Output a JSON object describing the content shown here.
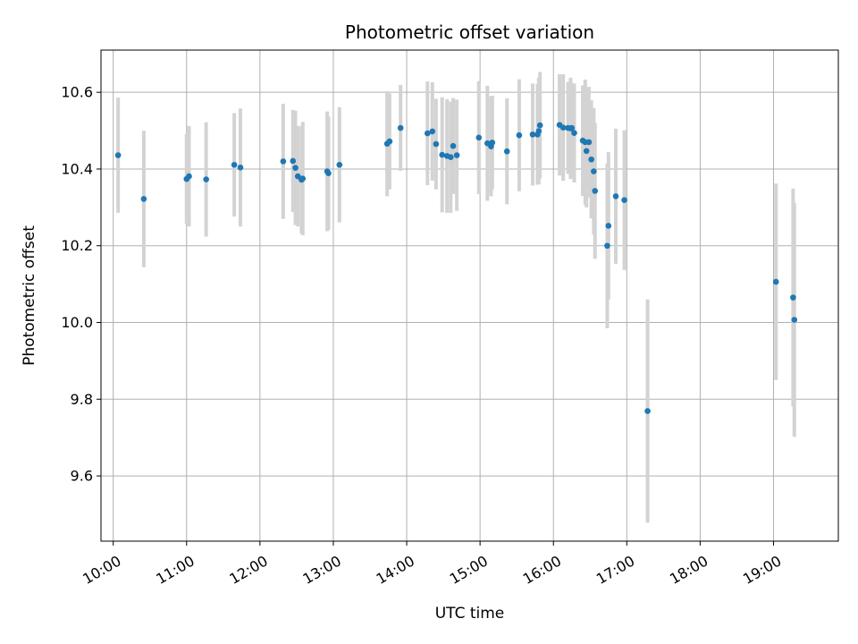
{
  "chart_data": {
    "type": "scatter",
    "title": "Photometric offset variation",
    "xlabel": "UTC time",
    "ylabel": "Photometric offset",
    "grid": true,
    "xlim": [
      "09:50",
      "19:53"
    ],
    "ylim": [
      9.43,
      10.71
    ],
    "x_ticks": [
      "10:00",
      "11:00",
      "12:00",
      "13:00",
      "14:00",
      "15:00",
      "16:00",
      "17:00",
      "18:00",
      "19:00"
    ],
    "y_ticks": [
      9.6,
      9.8,
      10.0,
      10.2,
      10.4,
      10.6
    ],
    "marker_color": "#1f77b4",
    "errorbar_color": "#d3d3d3",
    "series": [
      {
        "x": [
          "10:04",
          "10:25",
          "11:00",
          "11:02",
          "11:16",
          "11:39",
          "11:44",
          "12:19",
          "12:27",
          "12:29",
          "12:31",
          "12:34",
          "12:35",
          "12:55",
          "12:56",
          "13:05",
          "13:44",
          "13:46",
          "13:55",
          "14:17",
          "14:21",
          "14:24",
          "14:29",
          "14:33",
          "14:36",
          "14:38",
          "14:41",
          "14:59",
          "15:06",
          "15:09",
          "15:10",
          "15:22",
          "15:32",
          "15:43",
          "15:47",
          "15:48",
          "15:49",
          "16:05",
          "16:08",
          "16:12",
          "16:14",
          "16:15",
          "16:17",
          "16:24",
          "16:26",
          "16:27",
          "16:29",
          "16:31",
          "16:33",
          "16:34",
          "16:44",
          "16:45",
          "16:51",
          "16:58",
          "17:17",
          "19:02",
          "19:16",
          "19:17"
        ],
        "y": [
          10.436,
          10.322,
          10.374,
          10.381,
          10.373,
          10.411,
          10.404,
          10.42,
          10.421,
          10.403,
          10.381,
          10.372,
          10.375,
          10.394,
          10.389,
          10.411,
          10.466,
          10.472,
          10.507,
          10.493,
          10.498,
          10.465,
          10.437,
          10.434,
          10.431,
          10.46,
          10.436,
          10.482,
          10.467,
          10.459,
          10.469,
          10.446,
          10.488,
          10.49,
          10.49,
          10.499,
          10.514,
          10.515,
          10.508,
          10.507,
          10.506,
          10.507,
          10.494,
          10.474,
          10.47,
          10.447,
          10.47,
          10.425,
          10.394,
          10.343,
          10.2,
          10.252,
          10.329,
          10.319,
          9.769,
          10.106,
          10.065,
          10.007
        ],
        "error": [
          0.15,
          0.178,
          0.117,
          0.131,
          0.149,
          0.135,
          0.154,
          0.15,
          0.133,
          0.149,
          0.131,
          0.14,
          0.148,
          0.156,
          0.148,
          0.15,
          0.137,
          0.125,
          0.112,
          0.135,
          0.128,
          0.118,
          0.15,
          0.148,
          0.145,
          0.125,
          0.145,
          0.147,
          0.15,
          0.13,
          0.122,
          0.138,
          0.146,
          0.133,
          0.131,
          0.139,
          0.139,
          0.132,
          0.139,
          0.12,
          0.132,
          0.118,
          0.129,
          0.144,
          0.163,
          0.147,
          0.144,
          0.154,
          0.165,
          0.177,
          0.215,
          0.192,
          0.176,
          0.182,
          0.291,
          0.256,
          0.284,
          0.305
        ]
      }
    ]
  }
}
